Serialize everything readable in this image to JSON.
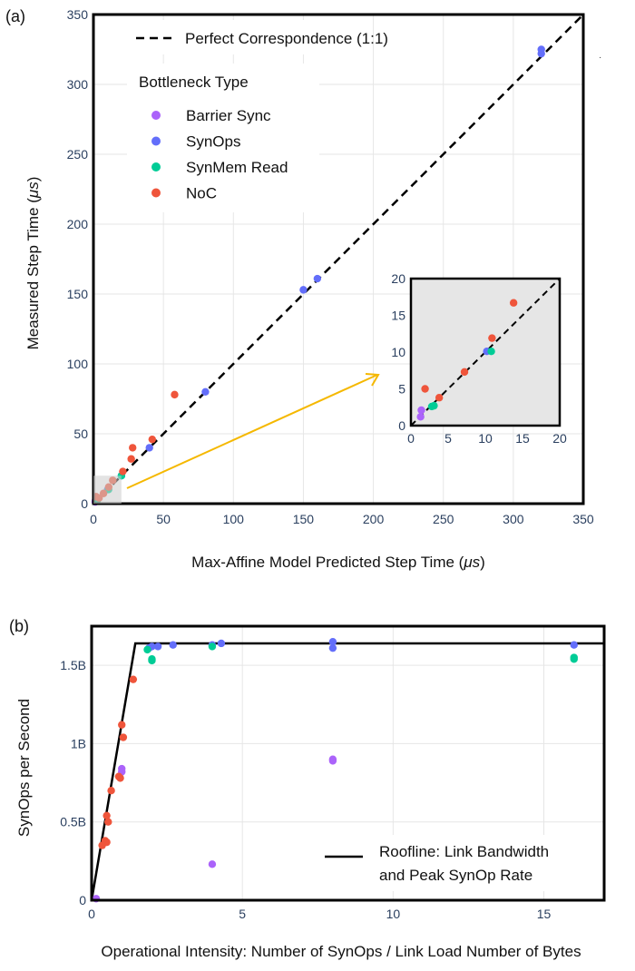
{
  "panel_a": {
    "label": "(a)",
    "xlabel": "Max-Affine Model Predicted Step Time (",
    "xlabel_mu": "μs",
    "xlabel_close": ")",
    "ylabel": "Measured Step Time (",
    "ylabel_mu": "μs",
    "ylabel_close": ")",
    "ref_line_label": "Perfect Correspondence (1:1)",
    "legend_title": "Bottleneck Type",
    "inset_label": "zoomed inset 0–20"
  },
  "panel_b": {
    "label": "(b)",
    "xlabel": "Operational Intensity: Number of SynOps / Link Load Number of Bytes",
    "ylabel": "SynOps per Second",
    "roofline_label_1": "Roofline: Link Bandwidth",
    "roofline_label_2": "and Peak SynOp Rate"
  },
  "colors": {
    "Barrier Sync": "#ab63fa",
    "SynOps": "#636efa",
    "SynMem Read": "#00cc96",
    "NoC": "#ef553b",
    "arrow": "#f5b800"
  },
  "chart_data": [
    {
      "type": "scatter",
      "id": "a",
      "xlabel": "Max-Affine Model Predicted Step Time (μs)",
      "ylabel": "Measured Step Time (μs)",
      "xlim": [
        0,
        350
      ],
      "ylim": [
        0,
        350
      ],
      "xticks": [
        0,
        50,
        100,
        150,
        200,
        250,
        300,
        350
      ],
      "yticks": [
        0,
        50,
        100,
        150,
        200,
        250,
        300,
        350
      ],
      "reference_line": {
        "name": "Perfect Correspondence (1:1)",
        "from": [
          0,
          0
        ],
        "to": [
          350,
          350
        ]
      },
      "series": [
        {
          "name": "Barrier Sync",
          "points": [
            [
              1.3,
              1.2
            ],
            [
              1.4,
              2.1
            ]
          ]
        },
        {
          "name": "SynOps",
          "points": [
            [
              10.2,
              10.1
            ],
            [
              20,
              20
            ],
            [
              40,
              40
            ],
            [
              80,
              80
            ],
            [
              150,
              153
            ],
            [
              160,
              161
            ],
            [
              320,
              322
            ],
            [
              320,
              325
            ]
          ]
        },
        {
          "name": "SynMem Read",
          "points": [
            [
              2.8,
              2.6
            ],
            [
              10.8,
              10.1
            ],
            [
              20,
              20
            ]
          ]
        },
        {
          "name": "NoC",
          "points": [
            [
              1.9,
              5
            ],
            [
              4,
              4
            ],
            [
              7.2,
              7.3
            ],
            [
              10.9,
              11.9
            ],
            [
              13.8,
              16.7
            ],
            [
              21,
              23
            ],
            [
              28,
              40
            ],
            [
              27,
              32
            ],
            [
              42,
              46
            ],
            [
              58,
              78
            ]
          ]
        }
      ],
      "inset": {
        "xlim": [
          0,
          20
        ],
        "ylim": [
          0,
          20
        ],
        "xticks": [
          0,
          5,
          10,
          15,
          20
        ],
        "yticks": [
          0,
          5,
          10,
          15,
          20
        ],
        "series": [
          {
            "name": "Barrier Sync",
            "points": [
              [
                1.3,
                1.2
              ],
              [
                1.4,
                2.1
              ]
            ]
          },
          {
            "name": "SynOps",
            "points": [
              [
                10.2,
                10.1
              ]
            ]
          },
          {
            "name": "SynMem Read",
            "points": [
              [
                2.8,
                2.6
              ],
              [
                3.1,
                2.7
              ],
              [
                10.8,
                10.1
              ]
            ]
          },
          {
            "name": "NoC",
            "points": [
              [
                1.9,
                5
              ],
              [
                3.8,
                3.8
              ],
              [
                7.2,
                7.3
              ],
              [
                10.9,
                11.9
              ],
              [
                13.8,
                16.7
              ]
            ]
          }
        ]
      }
    },
    {
      "type": "scatter",
      "id": "b",
      "xlabel": "Operational Intensity: Number of SynOps / Link Load Number of Bytes",
      "ylabel": "SynOps per Second",
      "xlim": [
        0,
        17
      ],
      "ylim": [
        0,
        1.75
      ],
      "xticks": [
        0,
        5,
        10,
        15
      ],
      "ytick_values": [
        0,
        0.5,
        1,
        1.5
      ],
      "ytick_labels": [
        "0",
        "0.5B",
        "1B",
        "1.5B"
      ],
      "roofline": {
        "name": "Roofline: Link Bandwidth and Peak SynOp Rate",
        "points": [
          [
            0,
            0
          ],
          [
            1.45,
            1.64
          ],
          [
            17,
            1.64
          ]
        ]
      },
      "series": [
        {
          "name": "Barrier Sync",
          "points": [
            [
              0.15,
              0.01
            ],
            [
              1.0,
              0.84
            ],
            [
              1.0,
              0.82
            ],
            [
              4.0,
              0.23
            ],
            [
              8.0,
              0.9
            ],
            [
              8.0,
              0.89
            ]
          ]
        },
        {
          "name": "SynOps",
          "points": [
            [
              1.9,
              1.61
            ],
            [
              2.0,
              1.62
            ],
            [
              2.2,
              1.62
            ],
            [
              2.7,
              1.63
            ],
            [
              4.0,
              1.63
            ],
            [
              4.3,
              1.64
            ],
            [
              8.0,
              1.65
            ],
            [
              8.0,
              1.61
            ],
            [
              16.0,
              1.63
            ]
          ]
        },
        {
          "name": "SynMem Read",
          "points": [
            [
              1.85,
              1.6
            ],
            [
              2.0,
              1.54
            ],
            [
              2.0,
              1.53
            ],
            [
              4.0,
              1.62
            ],
            [
              16.0,
              1.55
            ],
            [
              16.0,
              1.54
            ]
          ]
        },
        {
          "name": "NoC",
          "points": [
            [
              0.35,
              0.35
            ],
            [
              0.45,
              0.38
            ],
            [
              0.5,
              0.37
            ],
            [
              0.5,
              0.54
            ],
            [
              0.55,
              0.5
            ],
            [
              0.65,
              0.7
            ],
            [
              0.9,
              0.79
            ],
            [
              0.95,
              0.78
            ],
            [
              1.0,
              1.12
            ],
            [
              1.05,
              1.04
            ],
            [
              1.38,
              1.41
            ]
          ]
        }
      ]
    }
  ]
}
